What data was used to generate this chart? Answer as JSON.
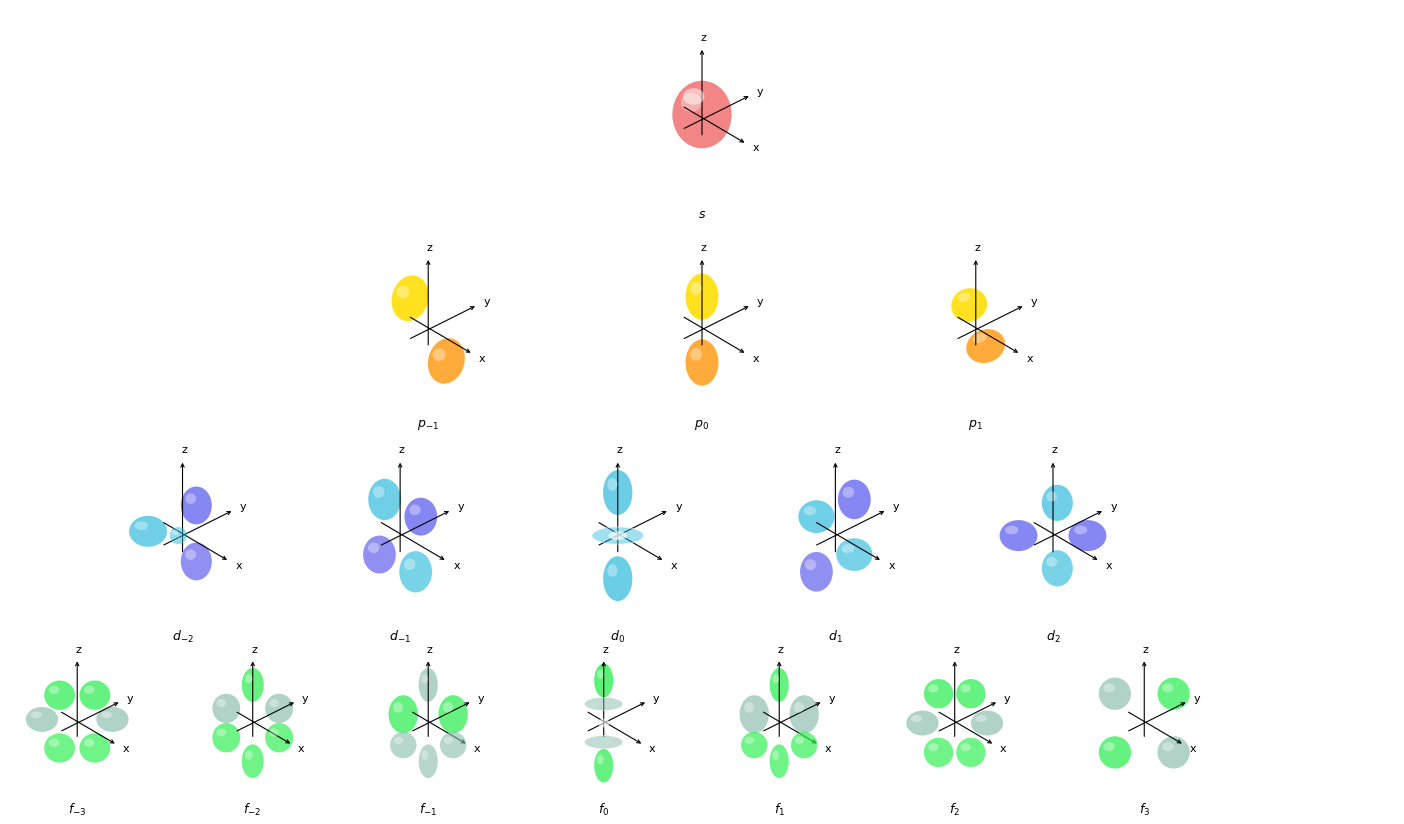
{
  "background_color": "#ffffff",
  "label_fontsize": 9,
  "axis_label_fontsize": 8,
  "s_color": "#f07070",
  "s_highlight": "#ffaaaa",
  "p_color_a": "#ffdd00",
  "p_color_b": "#ffa020",
  "d_color_a": "#5555ee",
  "d_color_b": "#30bbdd",
  "f_color_a": "#33ee55",
  "f_color_b": "#88bbaa",
  "p_labels": [
    "p_{-1}",
    "p_0",
    "p_1"
  ],
  "d_labels": [
    "d_{-2}",
    "d_{-1}",
    "d_0",
    "d_1",
    "d_2"
  ],
  "f_labels": [
    "f_{-3}",
    "f_{-2}",
    "f_{-1}",
    "f_0",
    "f_1",
    "f_2",
    "f_3"
  ]
}
